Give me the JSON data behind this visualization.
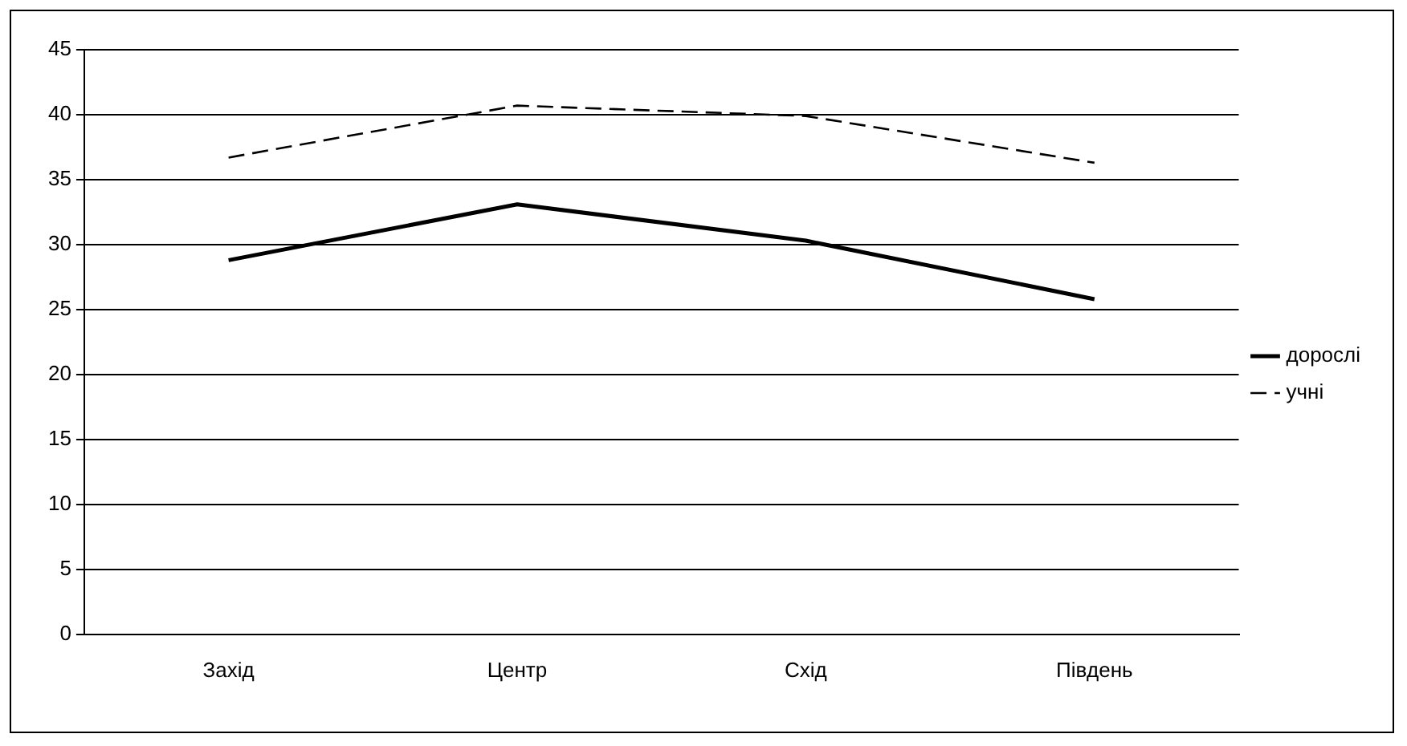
{
  "chart_data": {
    "type": "line",
    "categories": [
      "Захід",
      "Центр",
      "Схід",
      "Південь"
    ],
    "series": [
      {
        "name": "дорослі",
        "color": "#000000",
        "line_style": "solid",
        "values": [
          28.8,
          33.1,
          30.3,
          25.8
        ]
      },
      {
        "name": "учні",
        "color": "#000000",
        "line_style": "dashed",
        "values": [
          36.7,
          40.7,
          39.9,
          36.3
        ]
      }
    ],
    "ylim": [
      0,
      45
    ],
    "yticks": [
      0,
      5,
      10,
      15,
      20,
      25,
      30,
      35,
      40,
      45
    ],
    "grid": "y",
    "legend": "right",
    "marker": "none"
  }
}
